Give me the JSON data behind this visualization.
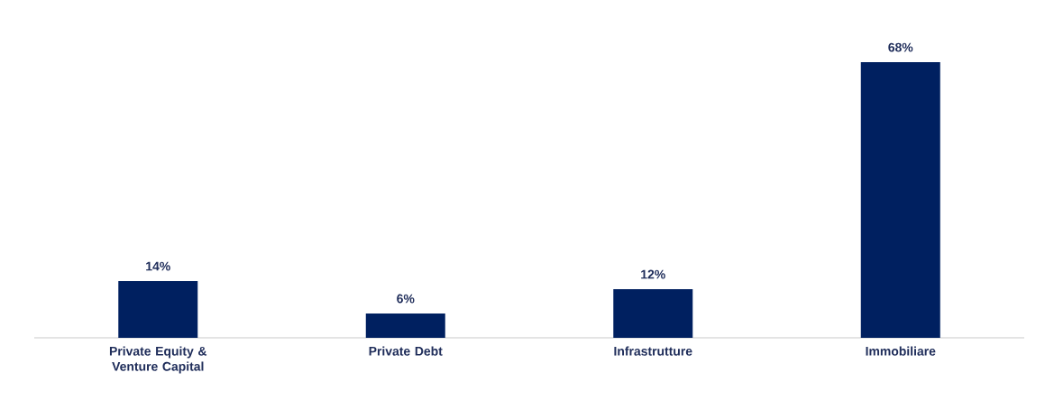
{
  "chart_data": {
    "type": "bar",
    "categories": [
      "Private Equity & Venture Capital",
      "Private Debt",
      "Infrastrutture",
      "Immobiliare"
    ],
    "values": [
      14,
      6,
      12,
      68
    ],
    "value_labels": [
      "14%",
      "6%",
      "12%",
      "68%"
    ],
    "color": "#002060"
  }
}
